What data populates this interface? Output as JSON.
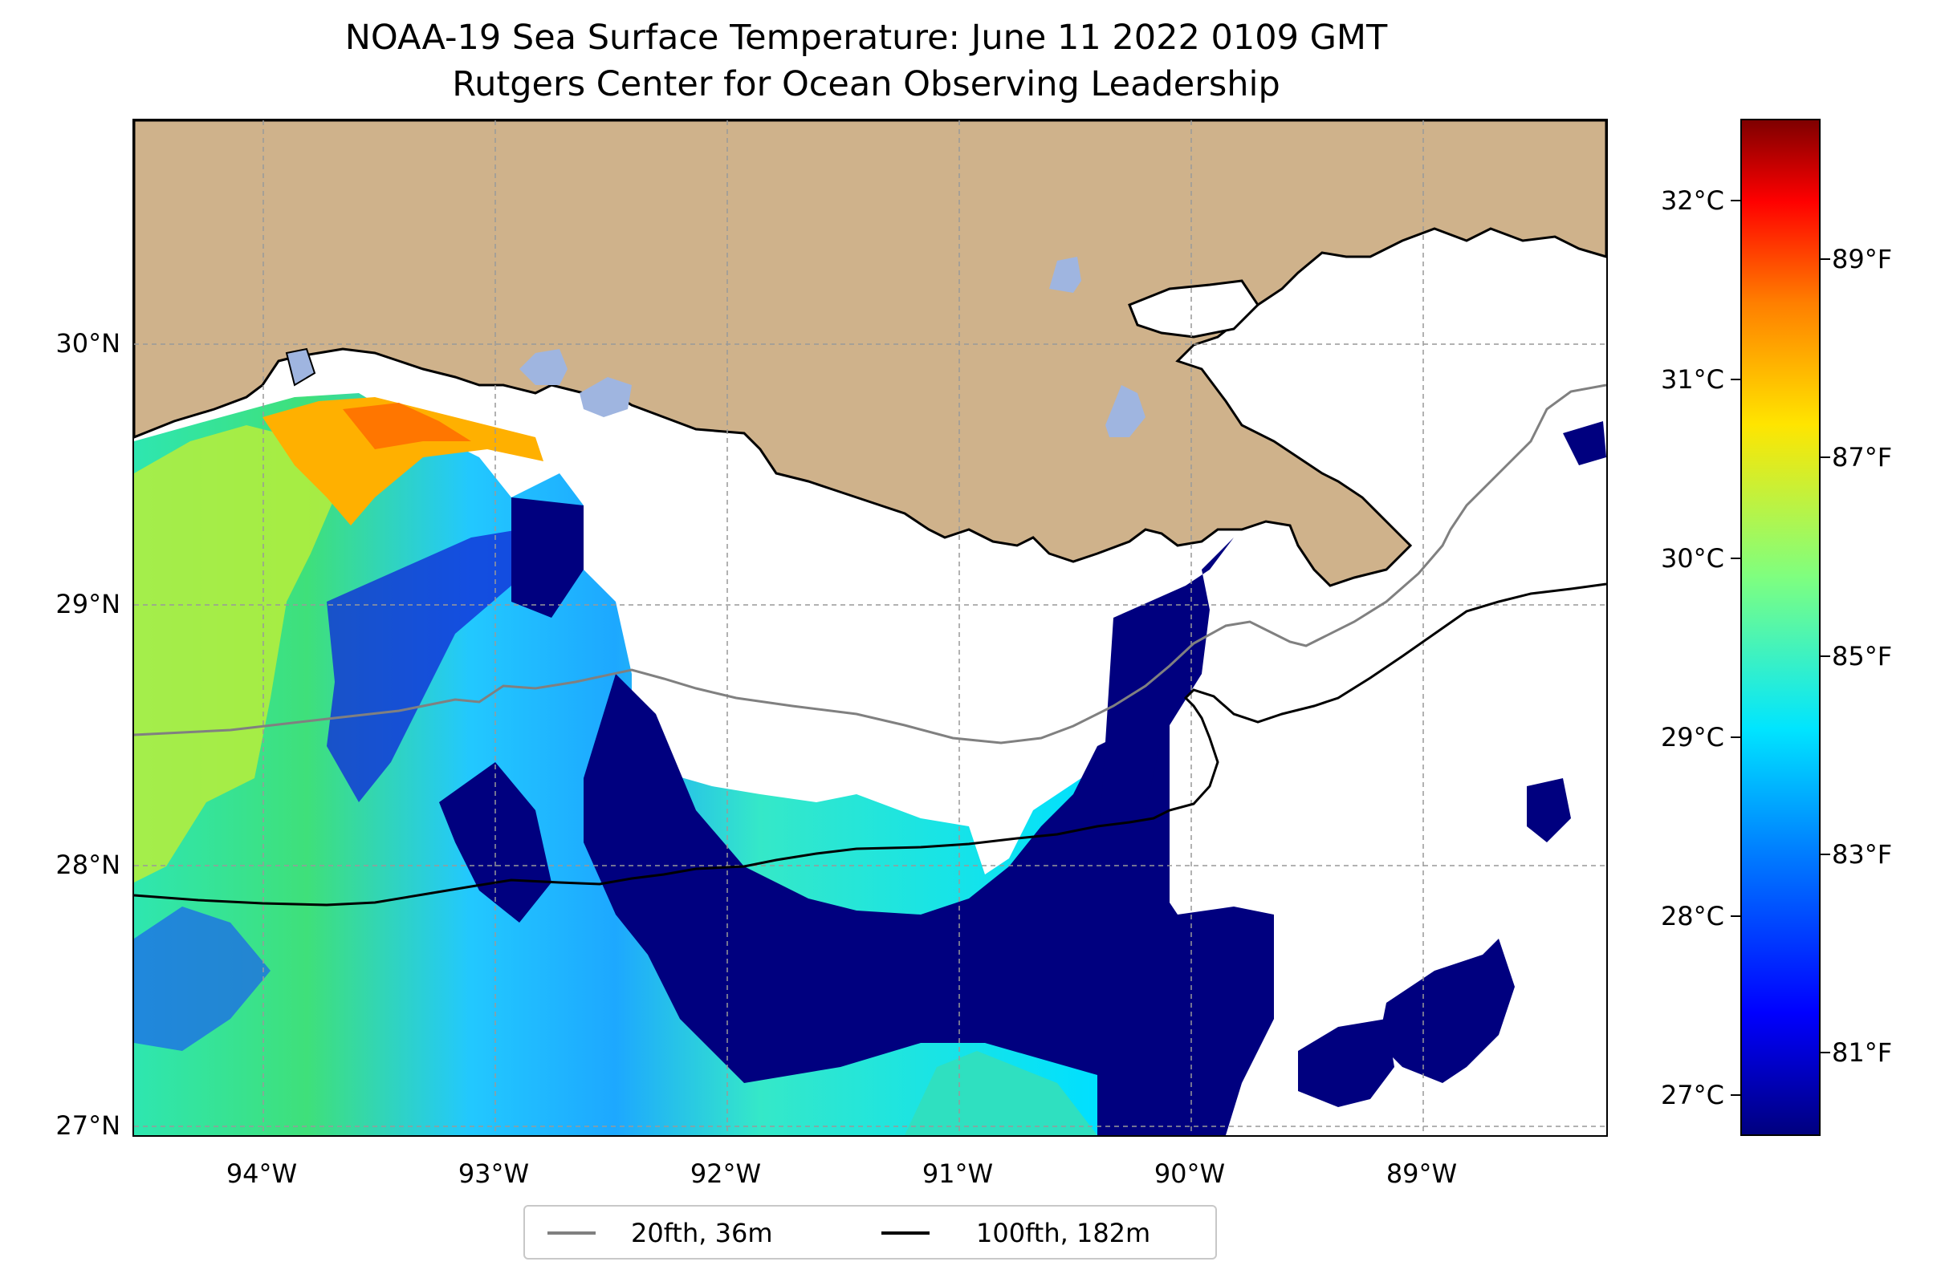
{
  "title": {
    "line1": "NOAA-19 Sea Surface Temperature: June 11 2022 0109 GMT",
    "line2": "Rutgers Center for Ocean Observing Leadership"
  },
  "axes": {
    "x_ticks": [
      "94°W",
      "93°W",
      "92°W",
      "91°W",
      "90°W",
      "89°W"
    ],
    "y_ticks": [
      "30°N",
      "29°N",
      "28°N",
      "27°N"
    ],
    "extent": {
      "lon": [
        -94.57,
        -88.23
      ],
      "lat": [
        26.95,
        30.83
      ]
    }
  },
  "colorbar": {
    "celsius_ticks": [
      "32°C",
      "31°C",
      "30°C",
      "29°C",
      "28°C",
      "27°C"
    ],
    "fahrenheit_ticks": [
      "89°F",
      "87°F",
      "85°F",
      "83°F",
      "81°F"
    ],
    "colormap": "jet",
    "range_f": [
      79.9,
      90.6
    ]
  },
  "legend": {
    "items": [
      {
        "label": "20fth, 36m",
        "color": "#808080"
      },
      {
        "label": "100fth, 182m",
        "color": "#000000"
      }
    ]
  },
  "colors": {
    "land": "#cfb28b",
    "lakes": "#9fb5e0",
    "no_data": "#ffffff",
    "cold": "#00007f",
    "warm": "#ff8c00"
  }
}
